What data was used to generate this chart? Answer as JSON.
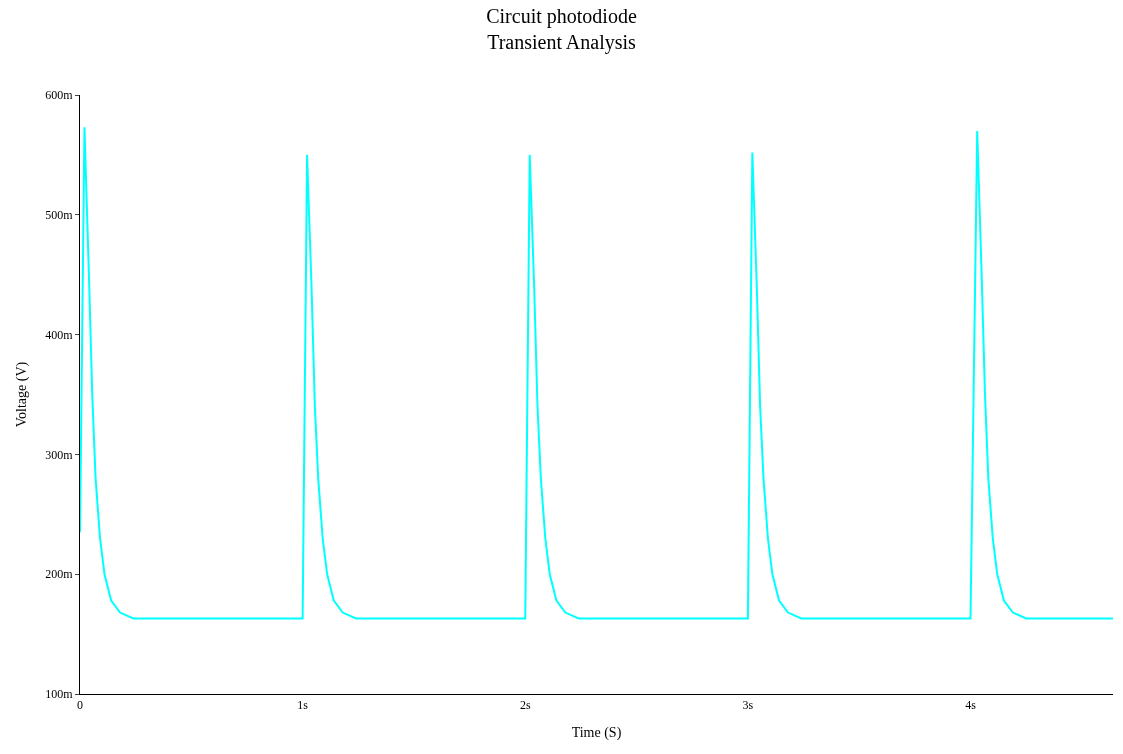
{
  "chart_data": {
    "type": "line",
    "title": "Circuit photodiode",
    "subtitle": "Transient Analysis",
    "xlabel": "Time (S)",
    "ylabel": "Voltage (V)",
    "x": [
      0,
      0.02,
      0.04,
      0.055,
      0.07,
      0.09,
      0.11,
      0.14,
      0.18,
      0.24,
      1.0,
      1.02,
      1.04,
      1.055,
      1.07,
      1.09,
      1.11,
      1.14,
      1.18,
      1.24,
      2.0,
      2.02,
      2.04,
      2.055,
      2.07,
      2.09,
      2.11,
      2.14,
      2.18,
      2.24,
      3.0,
      3.02,
      3.04,
      3.055,
      3.07,
      3.09,
      3.11,
      3.14,
      3.18,
      3.24,
      4.0,
      4.03,
      4.05,
      4.065,
      4.08,
      4.1,
      4.12,
      4.15,
      4.19,
      4.25,
      4.64
    ],
    "series": [
      {
        "color": "#00ffff",
        "values": [
          235,
          573,
          450,
          350,
          280,
          230,
          200,
          178,
          168,
          163,
          163,
          550,
          440,
          340,
          280,
          230,
          200,
          178,
          168,
          163,
          163,
          550,
          440,
          340,
          280,
          230,
          200,
          178,
          168,
          163,
          163,
          552,
          440,
          340,
          280,
          230,
          200,
          178,
          168,
          163,
          163,
          570,
          450,
          350,
          280,
          230,
          200,
          178,
          168,
          163,
          163
        ]
      }
    ],
    "xlim": [
      0,
      4.64
    ],
    "ylim": [
      100,
      600
    ],
    "xticks": [
      0,
      {
        "value": 1,
        "label": "1s"
      },
      {
        "value": 2,
        "label": "2s"
      },
      {
        "value": 3,
        "label": "3s"
      },
      {
        "value": 4,
        "label": "4s"
      }
    ],
    "yticks": [
      {
        "value": 100,
        "label": "100m"
      },
      {
        "value": 200,
        "label": "200m"
      },
      {
        "value": 300,
        "label": "300m"
      },
      {
        "value": 400,
        "label": "400m"
      },
      {
        "value": 500,
        "label": "500m"
      },
      {
        "value": 600,
        "label": "600m"
      }
    ],
    "marker": "none",
    "line_style": "solid"
  }
}
